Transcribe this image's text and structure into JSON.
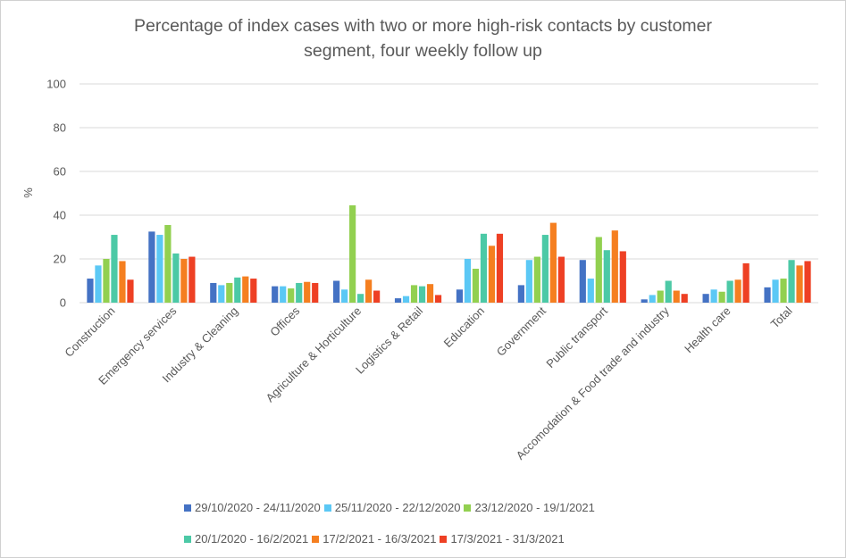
{
  "chart_data": {
    "type": "bar",
    "title": "Percentage of index cases with two or more high-risk contacts by customer segment, four weekly follow up",
    "title_lines": [
      "Percentage of index cases with two or more high-risk contacts by customer",
      "segment, four weekly follow up"
    ],
    "ylabel": "%",
    "xlabel": "",
    "ylim": [
      0,
      100
    ],
    "yticks": [
      0,
      20,
      40,
      60,
      80,
      100
    ],
    "grid": true,
    "legend_position": "bottom",
    "categories": [
      "Construction",
      "Emergency services",
      "Industry & Cleaning",
      "Offices",
      "Agriculture & Horticulture",
      "Logistics & Retail",
      "Education",
      "Government",
      "Public transport",
      "Accomodation & Food trade and industry",
      "Health care",
      "Total"
    ],
    "series": [
      {
        "name": "29/10/2020 - 24/11/2020",
        "color": "#4472c4",
        "values": [
          11,
          32.5,
          9,
          7.5,
          10,
          2,
          6,
          8,
          19.5,
          1.5,
          4,
          7
        ]
      },
      {
        "name": "25/11/2020 - 22/12/2020",
        "color": "#5bc8f5",
        "values": [
          17,
          31,
          8,
          7.5,
          6,
          3,
          20,
          19.5,
          11,
          3.5,
          6,
          10.5
        ]
      },
      {
        "name": "23/12/2020 - 19/1/2021",
        "color": "#92d050",
        "values": [
          20,
          35.5,
          9,
          6.5,
          44.5,
          8,
          15.5,
          21,
          30,
          5.5,
          5,
          11
        ]
      },
      {
        "name": "20/1/2020 - 16/2/2021",
        "color": "#4cc9a6",
        "values": [
          31,
          22.5,
          11.5,
          9,
          4,
          7.5,
          31.5,
          31,
          24,
          10,
          10,
          19.5
        ]
      },
      {
        "name": "17/2/2021 - 16/3/2021",
        "color": "#f57f20",
        "values": [
          19,
          20,
          12,
          9.5,
          10.5,
          8.5,
          26,
          36.5,
          33,
          5.5,
          10.5,
          17
        ]
      },
      {
        "name": "17/3/2021 - 31/3/2021",
        "color": "#ee4024",
        "values": [
          10.5,
          21,
          11,
          9,
          5.5,
          3.5,
          31.5,
          21,
          23.5,
          4,
          18,
          19
        ]
      }
    ]
  }
}
